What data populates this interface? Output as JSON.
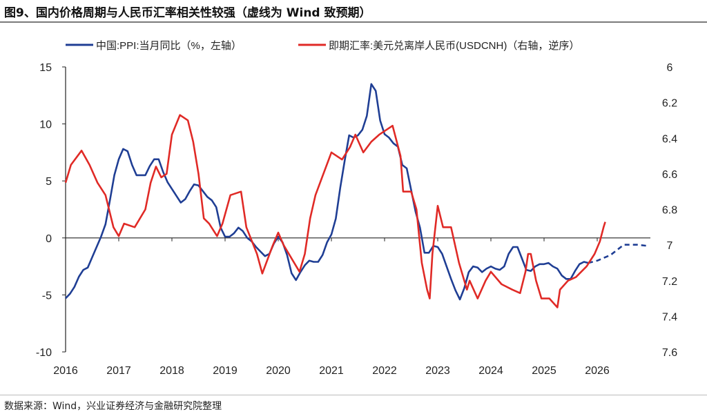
{
  "title": "图9、国内价格周期与人民币汇率相关性较强（虚线为 Wind 致预期）",
  "source": "数据来源：Wind，兴业证券经济与金融研究院整理",
  "chart_data": {
    "type": "line",
    "xlim": [
      2016,
      2027
    ],
    "x_ticks": [
      "2016",
      "2017",
      "2018",
      "2019",
      "2020",
      "2021",
      "2022",
      "2023",
      "2024",
      "2025",
      "2026"
    ],
    "y_left": {
      "lim": [
        -10,
        15
      ],
      "ticks": [
        "-10",
        "-5",
        "0",
        "5",
        "10",
        "15"
      ]
    },
    "y_right": {
      "lim": [
        6,
        7.6
      ],
      "inverted": true,
      "ticks": [
        "6",
        "6.2",
        "6.4",
        "6.6",
        "6.8",
        "7",
        "7.2",
        "7.4",
        "7.6"
      ]
    },
    "grid": false,
    "legend": "top",
    "series": [
      {
        "name": "中国:PPI:当月同比（%，左轴）",
        "axis": "left",
        "color": "#1f3e94",
        "start": "2016-01",
        "frequency": "monthly",
        "values": [
          -5.3,
          -4.9,
          -4.3,
          -3.4,
          -2.8,
          -2.6,
          -1.7,
          -0.8,
          0.1,
          1.2,
          3.3,
          5.5,
          6.9,
          7.8,
          7.6,
          6.4,
          5.5,
          5.5,
          5.5,
          6.3,
          6.9,
          6.9,
          5.8,
          4.9,
          4.3,
          3.7,
          3.1,
          3.4,
          4.1,
          4.7,
          4.6,
          4.1,
          3.6,
          3.3,
          2.7,
          0.9,
          0.1,
          0.1,
          0.4,
          0.9,
          0.6,
          0.0,
          -0.3,
          -0.8,
          -1.2,
          -1.6,
          -1.4,
          -0.5,
          0.1,
          -0.4,
          -1.5,
          -3.1,
          -3.7,
          -3.0,
          -2.4,
          -2.0,
          -2.1,
          -2.1,
          -1.5,
          -0.4,
          0.3,
          1.7,
          4.4,
          6.8,
          9.0,
          8.8,
          9.0,
          9.5,
          10.7,
          13.5,
          12.9,
          10.3,
          9.1,
          8.8,
          8.3,
          8.0,
          6.4,
          6.1,
          4.2,
          2.3,
          0.9,
          -1.3,
          -1.3,
          -0.7,
          -0.8,
          -1.4,
          -2.5,
          -3.6,
          -4.6,
          -5.4,
          -4.4,
          -3.0,
          -2.5,
          -2.6,
          -3.0,
          -2.7,
          -2.5,
          -2.7,
          -2.8,
          -2.5,
          -1.4,
          -0.8,
          -0.8,
          -1.8,
          -2.8,
          -2.9,
          -2.5,
          -2.3,
          -2.3,
          -2.2,
          -2.5,
          -2.7,
          -3.3,
          -3.6,
          -3.6,
          -2.9,
          -2.3,
          -2.1,
          -2.2
        ]
      },
      {
        "name": "PPI forecast (dashed)",
        "axis": "left",
        "color": "#1f3e94",
        "dashed": true,
        "points": [
          [
            2025.83,
            -2.2
          ],
          [
            2026.0,
            -2.0
          ],
          [
            2026.25,
            -1.5
          ],
          [
            2026.5,
            -0.6
          ],
          [
            2026.75,
            -0.6
          ],
          [
            2026.95,
            -0.7
          ]
        ]
      },
      {
        "name": "即期汇率:美元兑离岸人民币(USDCNH)（右轴，逆序）",
        "axis": "right",
        "color": "#e02a26",
        "points": [
          [
            2016.0,
            6.65
          ],
          [
            2016.1,
            6.55
          ],
          [
            2016.3,
            6.47
          ],
          [
            2016.45,
            6.55
          ],
          [
            2016.6,
            6.65
          ],
          [
            2016.75,
            6.72
          ],
          [
            2016.9,
            6.9
          ],
          [
            2017.0,
            6.95
          ],
          [
            2017.1,
            6.88
          ],
          [
            2017.3,
            6.9
          ],
          [
            2017.5,
            6.8
          ],
          [
            2017.6,
            6.65
          ],
          [
            2017.7,
            6.56
          ],
          [
            2017.8,
            6.62
          ],
          [
            2017.9,
            6.6
          ],
          [
            2018.0,
            6.38
          ],
          [
            2018.15,
            6.27
          ],
          [
            2018.3,
            6.3
          ],
          [
            2018.4,
            6.42
          ],
          [
            2018.5,
            6.6
          ],
          [
            2018.6,
            6.85
          ],
          [
            2018.7,
            6.88
          ],
          [
            2018.85,
            6.95
          ],
          [
            2018.95,
            6.88
          ],
          [
            2019.1,
            6.72
          ],
          [
            2019.3,
            6.7
          ],
          [
            2019.4,
            6.9
          ],
          [
            2019.6,
            7.05
          ],
          [
            2019.7,
            7.16
          ],
          [
            2019.9,
            7.0
          ],
          [
            2020.0,
            6.93
          ],
          [
            2020.1,
            7.0
          ],
          [
            2020.3,
            7.1
          ],
          [
            2020.4,
            7.15
          ],
          [
            2020.5,
            7.05
          ],
          [
            2020.6,
            6.85
          ],
          [
            2020.7,
            6.72
          ],
          [
            2020.85,
            6.6
          ],
          [
            2021.0,
            6.48
          ],
          [
            2021.2,
            6.52
          ],
          [
            2021.35,
            6.45
          ],
          [
            2021.45,
            6.38
          ],
          [
            2021.6,
            6.48
          ],
          [
            2021.75,
            6.42
          ],
          [
            2021.9,
            6.38
          ],
          [
            2022.0,
            6.36
          ],
          [
            2022.15,
            6.33
          ],
          [
            2022.3,
            6.5
          ],
          [
            2022.35,
            6.7
          ],
          [
            2022.5,
            6.7
          ],
          [
            2022.6,
            6.8
          ],
          [
            2022.7,
            7.1
          ],
          [
            2022.8,
            7.25
          ],
          [
            2022.85,
            7.3
          ],
          [
            2022.9,
            7.05
          ],
          [
            2023.0,
            6.78
          ],
          [
            2023.1,
            6.9
          ],
          [
            2023.25,
            6.9
          ],
          [
            2023.4,
            7.1
          ],
          [
            2023.55,
            7.25
          ],
          [
            2023.6,
            7.2
          ],
          [
            2023.75,
            7.3
          ],
          [
            2023.9,
            7.2
          ],
          [
            2024.0,
            7.15
          ],
          [
            2024.2,
            7.22
          ],
          [
            2024.4,
            7.25
          ],
          [
            2024.55,
            7.27
          ],
          [
            2024.65,
            7.15
          ],
          [
            2024.7,
            7.05
          ],
          [
            2024.75,
            7.05
          ],
          [
            2024.85,
            7.2
          ],
          [
            2024.95,
            7.3
          ],
          [
            2025.1,
            7.3
          ],
          [
            2025.25,
            7.35
          ],
          [
            2025.3,
            7.25
          ],
          [
            2025.45,
            7.2
          ],
          [
            2025.6,
            7.18
          ],
          [
            2025.8,
            7.12
          ],
          [
            2025.95,
            7.05
          ],
          [
            2026.05,
            6.98
          ],
          [
            2026.12,
            6.9
          ],
          [
            2026.15,
            6.87
          ]
        ]
      }
    ]
  }
}
